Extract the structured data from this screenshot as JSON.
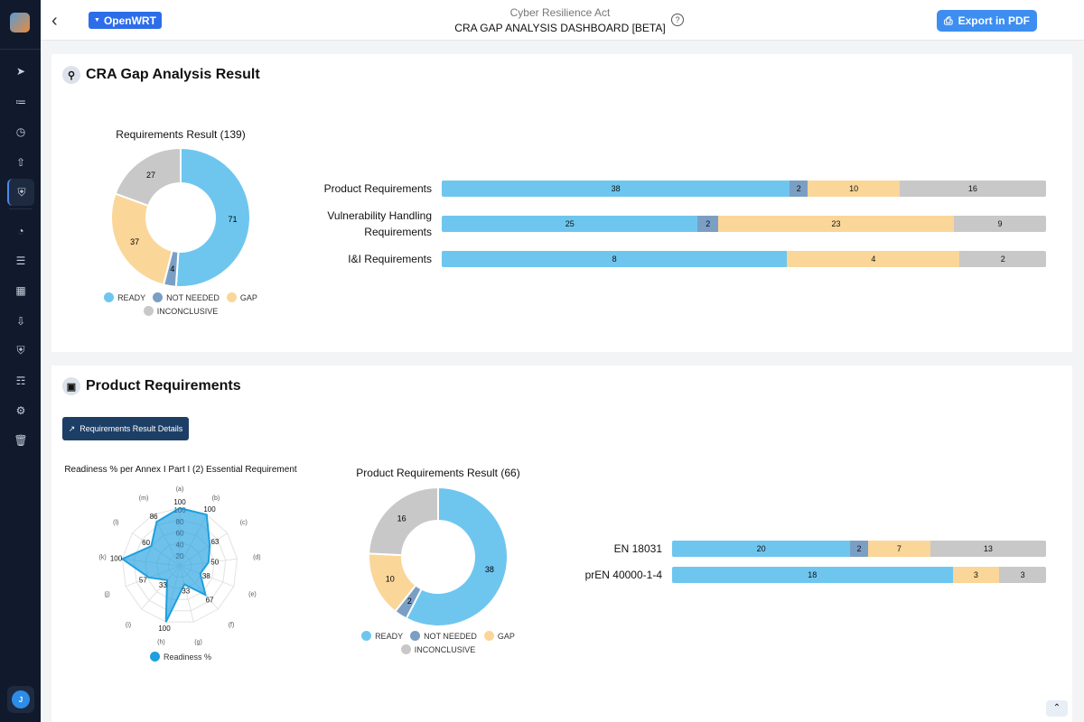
{
  "sidebar": {
    "items": [
      "send-icon",
      "chart-icon",
      "history-icon",
      "upload-icon",
      "shield-check-icon",
      "pie-chart-icon",
      "checklist-icon",
      "grid-icon",
      "download-icon",
      "shield-icon",
      "book-icon",
      "gear-icon",
      "trash-icon"
    ],
    "active": 4,
    "avatar": "J"
  },
  "header": {
    "project": "OpenWRT",
    "subtitle": "Cyber Resilience Act",
    "title": "CRA GAP ANALYSIS DASHBOARD [BETA]",
    "help": "?",
    "export_label": "Export in PDF"
  },
  "colors": {
    "ready": "#6ec6ef",
    "not_needed": "#7b9fc4",
    "gap": "#fbd699",
    "inconclusive": "#c8c8c8",
    "radar": "#1ea0e0"
  },
  "legend": [
    "READY",
    "NOT NEEDED",
    "GAP",
    "INCONCLUSIVE"
  ],
  "section1": {
    "title": "CRA Gap Analysis Result",
    "donut": {
      "title": "Requirements Result (139)",
      "values": [
        71,
        4,
        37,
        27
      ]
    },
    "bars": [
      {
        "label": "Product Requirements",
        "values": [
          38,
          2,
          10,
          16
        ]
      },
      {
        "label": "Vulnerability Handling Requirements",
        "values": [
          25,
          2,
          23,
          9
        ]
      },
      {
        "label": "I&I Requirements",
        "values": [
          8,
          0,
          4,
          2
        ]
      }
    ]
  },
  "section2": {
    "title": "Product Requirements",
    "details_button": "Requirements Result Details",
    "radar": {
      "title": "Readiness % per Annex I Part I (2) Essential Requirement",
      "axes": [
        "(a)",
        "(b)",
        "(c)",
        "(d)",
        "(e)",
        "(f)",
        "(g)",
        "(h)",
        "(i)",
        "(j)",
        "(k)",
        "(l)",
        "(m)"
      ],
      "values": [
        100,
        100,
        63,
        50,
        38,
        67,
        33,
        100,
        33,
        57,
        100,
        60,
        86
      ],
      "ticks": [
        20,
        40,
        60,
        80,
        100
      ],
      "series": "Readiness %"
    },
    "donut": {
      "title": "Product Requirements Result (66)",
      "values": [
        38,
        2,
        10,
        16
      ]
    },
    "bars": [
      {
        "label": "EN 18031",
        "values": [
          20,
          2,
          7,
          13
        ]
      },
      {
        "label": "prEN 40000-1-4",
        "values": [
          18,
          0,
          3,
          3
        ]
      }
    ]
  }
}
